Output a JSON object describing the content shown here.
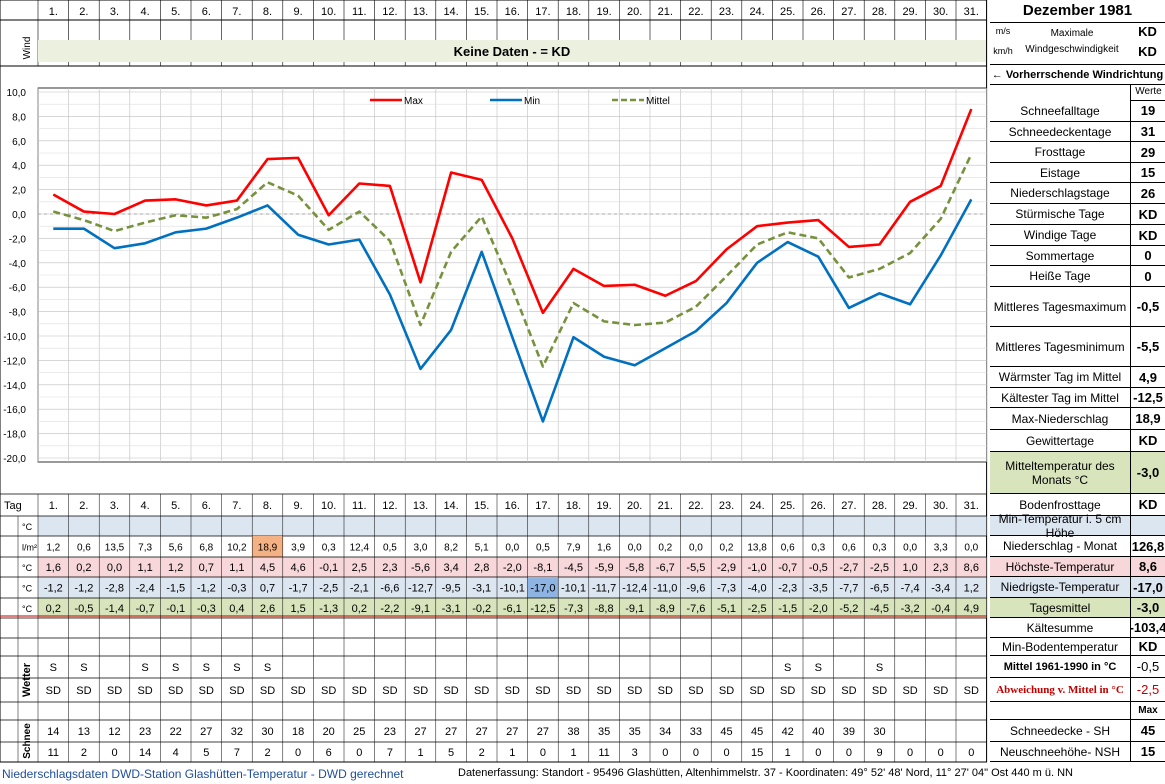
{
  "days": [
    "1.",
    "2.",
    "3.",
    "4.",
    "5.",
    "6.",
    "7.",
    "8.",
    "9.",
    "10.",
    "11.",
    "12.",
    "13.",
    "14.",
    "15.",
    "16.",
    "17.",
    "18.",
    "19.",
    "20.",
    "21.",
    "22.",
    "23.",
    "24.",
    "25.",
    "26.",
    "27.",
    "28.",
    "29.",
    "30.",
    "31."
  ],
  "header": {
    "month_title": "Dezember 1981",
    "wind_label": "Wind",
    "no_data_text": "Keine Daten -  = KD",
    "unit_ms": "m/s",
    "unit_kmh": "km/h",
    "max_wind_label": "Maximale Windgeschwindigkeit",
    "max_wind_ms": "KD",
    "max_wind_kmh": "KD",
    "wind_direction_label": "← Vorherrschende Windrichtung",
    "werte_label": "Werte"
  },
  "chart_data": {
    "type": "line",
    "x": [
      "1.",
      "2.",
      "3.",
      "4.",
      "5.",
      "6.",
      "7.",
      "8.",
      "9.",
      "10.",
      "11.",
      "12.",
      "13.",
      "14.",
      "15.",
      "16.",
      "17.",
      "18.",
      "19.",
      "20.",
      "21.",
      "22.",
      "23.",
      "24.",
      "25.",
      "26.",
      "27.",
      "28.",
      "29.",
      "30.",
      "31."
    ],
    "series": [
      {
        "name": "Max",
        "color": "#ff0000",
        "dash": false,
        "values": [
          1.6,
          0.2,
          0.0,
          1.1,
          1.2,
          0.7,
          1.1,
          4.5,
          4.6,
          -0.1,
          2.5,
          2.3,
          -5.6,
          3.4,
          2.8,
          -2.0,
          -8.1,
          -4.5,
          -5.9,
          -5.8,
          -6.7,
          -5.5,
          -2.9,
          -1.0,
          -0.7,
          -0.5,
          -2.7,
          -2.5,
          1.0,
          2.3,
          8.6
        ]
      },
      {
        "name": "Min",
        "color": "#0070c0",
        "dash": false,
        "values": [
          -1.2,
          -1.2,
          -2.8,
          -2.4,
          -1.5,
          -1.2,
          -0.3,
          0.7,
          -1.7,
          -2.5,
          -2.1,
          -6.6,
          -12.7,
          -9.5,
          -3.1,
          -10.1,
          -17.0,
          -10.1,
          -11.7,
          -12.4,
          -11.0,
          -9.6,
          -7.3,
          -4.0,
          -2.3,
          -3.5,
          -7.7,
          -6.5,
          -7.4,
          -3.4,
          1.2
        ]
      },
      {
        "name": "Mittel",
        "color": "#76923c",
        "dash": true,
        "values": [
          0.2,
          -0.5,
          -1.4,
          -0.7,
          -0.1,
          -0.3,
          0.4,
          2.6,
          1.5,
          -1.3,
          0.2,
          -2.2,
          -9.1,
          -3.1,
          -0.2,
          -6.1,
          -12.5,
          -7.3,
          -8.8,
          -9.1,
          -8.9,
          -7.6,
          -5.1,
          -2.5,
          -1.5,
          -2.0,
          -5.2,
          -4.5,
          -3.2,
          -0.4,
          4.9
        ]
      }
    ],
    "yticks": [
      "10,0",
      "8,0",
      "6,0",
      "4,0",
      "2,0",
      "0,0",
      "-2,0",
      "-4,0",
      "-6,0",
      "-8,0",
      "-10,0",
      "-12,0",
      "-14,0",
      "-16,0",
      "-18,0",
      "-20,0"
    ],
    "ylim": [
      -20,
      10
    ],
    "grid": true,
    "legend_position": "top-center"
  },
  "table": {
    "tag_label": "Tag",
    "unit_celsius": "°C",
    "unit_precip": "l/m²",
    "wetter_label": "Wetter",
    "schnee_label": "Schnee",
    "precipitation": [
      "1,2",
      "0,6",
      "13,5",
      "7,3",
      "5,6",
      "6,8",
      "10,2",
      "18,9",
      "3,9",
      "0,3",
      "12,4",
      "0,5",
      "3,0",
      "8,2",
      "5,1",
      "0,0",
      "0,5",
      "7,9",
      "1,6",
      "0,0",
      "0,2",
      "0,0",
      "0,2",
      "13,8",
      "0,6",
      "0,3",
      "0,6",
      "0,3",
      "0,0",
      "3,3",
      "0,0"
    ],
    "max_temp": [
      "1,6",
      "0,2",
      "0,0",
      "1,1",
      "1,2",
      "0,7",
      "1,1",
      "4,5",
      "4,6",
      "-0,1",
      "2,5",
      "2,3",
      "-5,6",
      "3,4",
      "2,8",
      "-2,0",
      "-8,1",
      "-4,5",
      "-5,9",
      "-5,8",
      "-6,7",
      "-5,5",
      "-2,9",
      "-1,0",
      "-0,7",
      "-0,5",
      "-2,7",
      "-2,5",
      "1,0",
      "2,3",
      "8,6"
    ],
    "min_temp": [
      "-1,2",
      "-1,2",
      "-2,8",
      "-2,4",
      "-1,5",
      "-1,2",
      "-0,3",
      "0,7",
      "-1,7",
      "-2,5",
      "-2,1",
      "-6,6",
      "-12,7",
      "-9,5",
      "-3,1",
      "-10,1",
      "-17,0",
      "-10,1",
      "-11,7",
      "-12,4",
      "-11,0",
      "-9,6",
      "-7,3",
      "-4,0",
      "-2,3",
      "-3,5",
      "-7,7",
      "-6,5",
      "-7,4",
      "-3,4",
      "1,2"
    ],
    "mean_temp": [
      "0,2",
      "-0,5",
      "-1,4",
      "-0,7",
      "-0,1",
      "-0,3",
      "0,4",
      "2,6",
      "1,5",
      "-1,3",
      "0,2",
      "-2,2",
      "-9,1",
      "-3,1",
      "-0,2",
      "-6,1",
      "-12,5",
      "-7,3",
      "-8,8",
      "-9,1",
      "-8,9",
      "-7,6",
      "-5,1",
      "-2,5",
      "-1,5",
      "-2,0",
      "-5,2",
      "-4,5",
      "-3,2",
      "-0,4",
      "4,9"
    ],
    "weather_s": [
      "S",
      "S",
      "",
      "S",
      "S",
      "S",
      "S",
      "S",
      "",
      "",
      "",
      "",
      "",
      "",
      "",
      "",
      "",
      "",
      "",
      "",
      "",
      "",
      "",
      "",
      "S",
      "S",
      "",
      "S",
      "",
      "",
      ""
    ],
    "weather_sd": [
      "SD",
      "SD",
      "SD",
      "SD",
      "SD",
      "SD",
      "SD",
      "SD",
      "SD",
      "SD",
      "SD",
      "SD",
      "SD",
      "SD",
      "SD",
      "SD",
      "SD",
      "SD",
      "SD",
      "SD",
      "SD",
      "SD",
      "SD",
      "SD",
      "SD",
      "SD",
      "SD",
      "SD",
      "SD",
      "SD",
      "SD"
    ],
    "snow_depth": [
      "14",
      "13",
      "12",
      "23",
      "22",
      "27",
      "32",
      "30",
      "18",
      "20",
      "25",
      "23",
      "27",
      "27",
      "27",
      "27",
      "27",
      "38",
      "35",
      "35",
      "34",
      "33",
      "45",
      "45",
      "42",
      "40",
      "39",
      "30",
      "",
      "",
      ""
    ],
    "new_snow": [
      "11",
      "2",
      "0",
      "14",
      "4",
      "5",
      "7",
      "2",
      "0",
      "6",
      "0",
      "7",
      "1",
      "5",
      "2",
      "1",
      "0",
      "1",
      "11",
      "3",
      "0",
      "0",
      "0",
      "15",
      "1",
      "0",
      "0",
      "9",
      "0",
      "0",
      "0"
    ],
    "highlight_colors": {
      "precip_max": "#f4b183",
      "temp_min": "#8eb4e3",
      "row_blue": "#dce6f1",
      "row_red": "#f8d7da",
      "row_green": "#d8e4bc",
      "header_green": "#ebf1de"
    }
  },
  "stats": {
    "schneefalltage": {
      "label": "Schneefalltage",
      "value": "19"
    },
    "schneedeckentage": {
      "label": "Schneedeckentage",
      "value": "31"
    },
    "frosttage": {
      "label": "Frosttage",
      "value": "29"
    },
    "eistage": {
      "label": "Eistage",
      "value": "15"
    },
    "niederschlagstage": {
      "label": "Niederschlagstage",
      "value": "26"
    },
    "stuermische": {
      "label": "Stürmische Tage",
      "value": "KD"
    },
    "windige": {
      "label": "Windige Tage",
      "value": "KD"
    },
    "sommertage": {
      "label": "Sommertage",
      "value": "0"
    },
    "heisse": {
      "label": "Heiße Tage",
      "value": "0"
    },
    "mittl_max": {
      "label": "Mittleres Tagesmaximum",
      "value": "-0,5"
    },
    "mittl_min": {
      "label": "Mittleres Tagesminimum",
      "value": "-5,5"
    },
    "waermster": {
      "label": "Wärmster Tag im Mittel",
      "value": "4,9"
    },
    "kaeltester": {
      "label": "Kältester Tag im Mittel",
      "value": "-12,5"
    },
    "max_nieder": {
      "label": "Max-Niederschlag",
      "value": "18,9"
    },
    "gewitter": {
      "label": "Gewittertage",
      "value": "KD"
    },
    "mitteltemp": {
      "label": "Mitteltemperatur des Monats °C",
      "value": "-3,0"
    },
    "bodenfrost": {
      "label": "Bodenfrosttage",
      "value": "KD"
    },
    "min_temp_5cm": {
      "label": "Min-Temperatur i. 5 cm Höhe",
      "value": ""
    },
    "nieder_monat": {
      "label": "Niederschlag - Monat",
      "value": "126,8"
    },
    "hoechste": {
      "label": "Höchste-Temperatur",
      "value": "8,6"
    },
    "niedrigste": {
      "label": "Niedrigste-Temperatur",
      "value": "-17,0"
    },
    "tagesmittel": {
      "label": "Tagesmittel",
      "value": "-3,0"
    },
    "kaeltesumme": {
      "label": "Kältesumme",
      "value": "-103,4"
    },
    "min_boden": {
      "label": "Min-Bodentemperatur",
      "value": "KD"
    },
    "mittel_6190": {
      "label": "Mittel 1961-1990 in °C",
      "value": "-0,5"
    },
    "abweichung": {
      "label": "Abweichung v. Mittel in °C",
      "value": "-2,5"
    },
    "max_label": "Max",
    "schneedecke": {
      "label": "Schneedecke -  SH",
      "value": "45"
    },
    "neuschnee": {
      "label": "Neuschneehöhe- NSH",
      "value": "15"
    }
  },
  "footer": {
    "left": "Niederschlagsdaten DWD-Station Glashütten-Temperatur -  DWD gerechnet",
    "right": "Datenerfassung: Standort -  95496  Glashütten, Altenhimmelstr. 37 - Koordinaten: 49° 52' 48' Nord,  11° 27' 04\" Ost  440 m ü. NN"
  }
}
